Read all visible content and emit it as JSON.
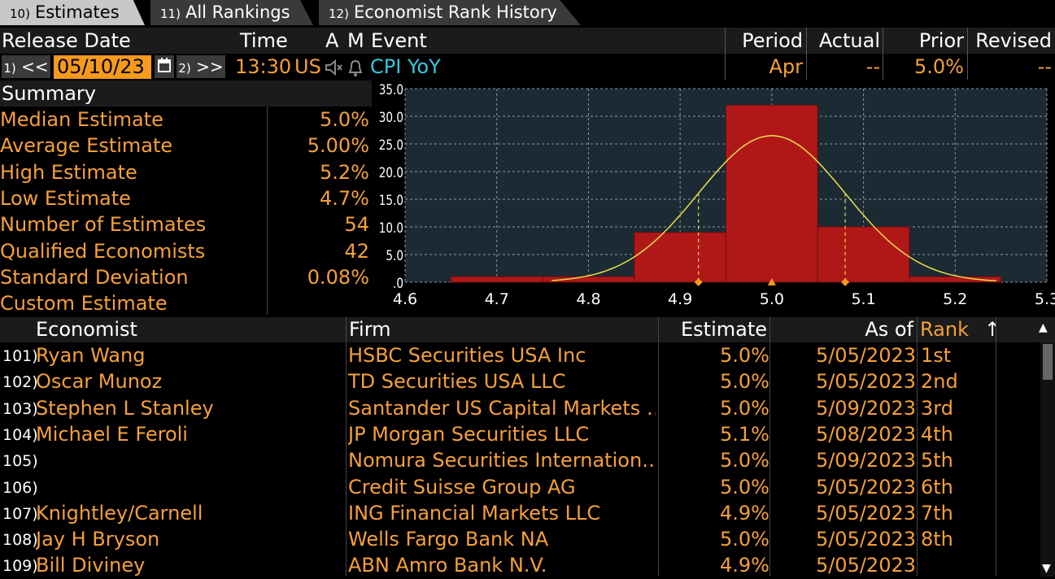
{
  "tabs": [
    {
      "num": "10)",
      "label": "Estimates",
      "active": true
    },
    {
      "num": "11)",
      "label": "All Rankings",
      "active": false
    },
    {
      "num": "12)",
      "label": "Economist Rank History",
      "active": false
    }
  ],
  "header": {
    "release_date": "Release Date",
    "time": "Time",
    "a": "A",
    "m": "M",
    "event": "Event",
    "period": "Period",
    "actual": "Actual",
    "prior": "Prior",
    "revised": "Revised"
  },
  "release": {
    "prev_btn_num": "1)",
    "prev_btn": "<<",
    "date": "05/10/23",
    "next_btn_num": "2)",
    "next_btn": ">>",
    "time": "13:30",
    "country": "US",
    "event": "CPI YoY",
    "period": "Apr",
    "actual": "--",
    "prior": "5.0%",
    "revised": "--"
  },
  "summary": {
    "title": "Summary",
    "rows": [
      {
        "label": "Median Estimate",
        "value": "5.0%"
      },
      {
        "label": "Average Estimate",
        "value": "5.00%"
      },
      {
        "label": "High Estimate",
        "value": "5.2%"
      },
      {
        "label": "Low Estimate",
        "value": "4.7%"
      },
      {
        "label": "Number of Estimates",
        "value": "54"
      },
      {
        "label": "Qualified Economists",
        "value": "42"
      },
      {
        "label": "Standard Deviation",
        "value": "0.08%"
      },
      {
        "label": "Custom Estimate",
        "value": ""
      }
    ]
  },
  "chart_data": {
    "type": "bar",
    "bins": [
      {
        "from": 4.65,
        "to": 4.75,
        "value": 1
      },
      {
        "from": 4.75,
        "to": 4.85,
        "value": 1
      },
      {
        "from": 4.85,
        "to": 4.95,
        "value": 9
      },
      {
        "from": 4.95,
        "to": 5.05,
        "value": 32
      },
      {
        "from": 5.05,
        "to": 5.15,
        "value": 10
      },
      {
        "from": 5.15,
        "to": 5.25,
        "value": 1
      }
    ],
    "normal_curve": {
      "mean": 5.0,
      "sd": 0.08,
      "peak": 26.5
    },
    "markers": [
      4.92,
      5.0,
      5.08
    ],
    "xlim": [
      4.6,
      5.3
    ],
    "ylim": [
      0,
      35
    ],
    "x_ticks": [
      "4.6",
      "4.7",
      "4.8",
      "4.9",
      "5.0",
      "5.1",
      "5.2",
      "5.3"
    ],
    "y_ticks": [
      ".0",
      "5.0",
      "10.0",
      "15.0",
      "20.0",
      "25.0",
      "30.0",
      "35.0"
    ],
    "grid": true,
    "colors": {
      "bar": "#b01818",
      "curve": "#e8e04a",
      "marker": "#f59a1e",
      "bg": "#1c2a33"
    }
  },
  "table": {
    "columns": [
      "Economist",
      "Firm",
      "Estimate",
      "As of",
      "Rank"
    ],
    "sort_arrow": "↑",
    "rows": [
      {
        "idx": "101)",
        "economist": "Ryan Wang",
        "firm": "HSBC Securities USA Inc",
        "estimate": "5.0%",
        "as_of": "5/05/2023",
        "rank": "1st"
      },
      {
        "idx": "102)",
        "economist": "Oscar Munoz",
        "firm": "TD Securities USA LLC",
        "estimate": "5.0%",
        "as_of": "5/05/2023",
        "rank": "2nd"
      },
      {
        "idx": "103)",
        "economist": "Stephen L Stanley",
        "firm": "Santander US Capital Markets …",
        "estimate": "5.0%",
        "as_of": "5/09/2023",
        "rank": "3rd"
      },
      {
        "idx": "104)",
        "economist": "Michael E Feroli",
        "firm": "JP Morgan Securities LLC",
        "estimate": "5.1%",
        "as_of": "5/08/2023",
        "rank": "4th"
      },
      {
        "idx": "105)",
        "economist": "",
        "firm": "Nomura Securities Internation…",
        "estimate": "5.0%",
        "as_of": "5/09/2023",
        "rank": "5th"
      },
      {
        "idx": "106)",
        "economist": "",
        "firm": "Credit Suisse Group AG",
        "estimate": "5.0%",
        "as_of": "5/05/2023",
        "rank": "6th"
      },
      {
        "idx": "107)",
        "economist": "Knightley/Carnell",
        "firm": "ING Financial Markets LLC",
        "estimate": "4.9%",
        "as_of": "5/05/2023",
        "rank": "7th"
      },
      {
        "idx": "108)",
        "economist": "Jay H Bryson",
        "firm": "Wells Fargo Bank NA",
        "estimate": "5.0%",
        "as_of": "5/05/2023",
        "rank": "8th"
      },
      {
        "idx": "109)",
        "economist": "Bill Diviney",
        "firm": "ABN Amro Bank N.V.",
        "estimate": "4.9%",
        "as_of": "5/05/2023",
        "rank": ""
      }
    ]
  }
}
